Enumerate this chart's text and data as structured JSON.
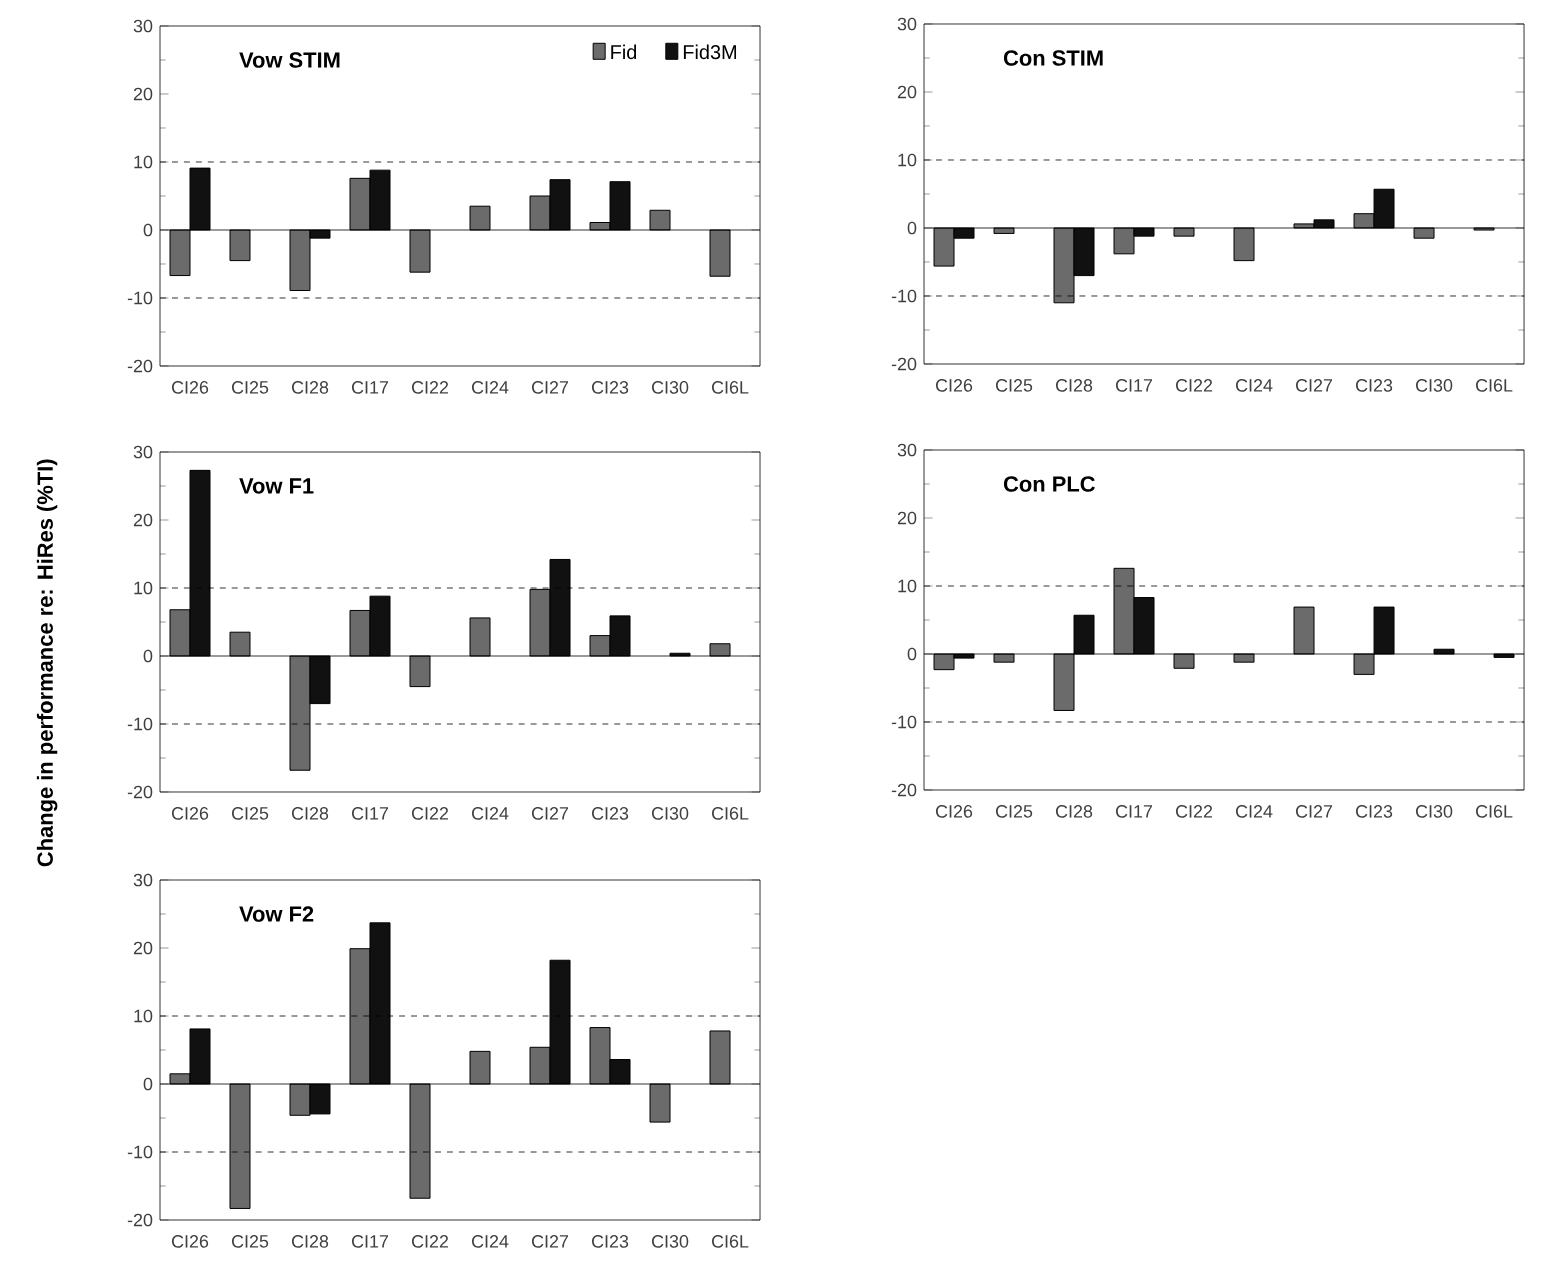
{
  "chart_data": [
    {
      "type": "bar",
      "title": "Vow STIM",
      "categories": [
        "CI26",
        "CI25",
        "CI28",
        "CI17",
        "CI22",
        "CI24",
        "CI27",
        "CI23",
        "CI30",
        "CI6L"
      ],
      "legend": "top right",
      "series": [
        {
          "name": "Fid",
          "color": "#6b6b6b",
          "values": [
            -6.7,
            -4.5,
            -8.9,
            7.6,
            -6.2,
            3.5,
            5.0,
            1.1,
            2.9,
            -6.8
          ]
        },
        {
          "name": "Fid3M",
          "color": "#111111",
          "values": [
            9.1,
            null,
            -1.2,
            8.8,
            null,
            null,
            7.4,
            7.1,
            null,
            null
          ]
        }
      ],
      "ylim": [
        -20,
        30
      ],
      "yticks": [
        -20,
        -10,
        0,
        10,
        20,
        30
      ],
      "ref_lines": [
        {
          "axis": "y",
          "value": 10,
          "line_style": "dashed"
        },
        {
          "axis": "y",
          "value": -10,
          "line_style": "dashed"
        }
      ]
    },
    {
      "type": "bar",
      "title": "Con STIM",
      "categories": [
        "CI26",
        "CI25",
        "CI28",
        "CI17",
        "CI22",
        "CI24",
        "CI27",
        "CI23",
        "CI30",
        "CI6L"
      ],
      "series": [
        {
          "color": "#6b6b6b",
          "values": [
            -5.6,
            -0.8,
            -11.0,
            -3.8,
            -1.2,
            -4.8,
            0.6,
            2.1,
            -1.5,
            -0.3
          ]
        },
        {
          "color": "#111111",
          "values": [
            -1.5,
            null,
            -7.0,
            -1.2,
            null,
            null,
            1.2,
            5.7,
            null,
            null
          ]
        }
      ],
      "ylim": [
        -20,
        30
      ],
      "yticks": [
        -20,
        -10,
        0,
        10,
        20,
        30
      ],
      "ref_lines": [
        {
          "axis": "y",
          "value": 10,
          "line_style": "dashed"
        },
        {
          "axis": "y",
          "value": -10,
          "line_style": "dashed"
        }
      ]
    },
    {
      "type": "bar",
      "title": "Vow F1",
      "ylabel": "Change in performance re: HiRes (%TI)",
      "categories": [
        "CI26",
        "CI25",
        "CI28",
        "CI17",
        "CI22",
        "CI24",
        "CI27",
        "CI23",
        "CI30",
        "CI6L"
      ],
      "series": [
        {
          "color": "#6b6b6b",
          "values": [
            6.8,
            3.5,
            -16.8,
            6.7,
            -4.5,
            5.6,
            9.8,
            3.0,
            null,
            1.8
          ]
        },
        {
          "color": "#111111",
          "values": [
            27.3,
            null,
            -7.0,
            8.8,
            null,
            null,
            14.2,
            5.9,
            0.4,
            null
          ]
        }
      ],
      "ylim": [
        -20,
        30
      ],
      "yticks": [
        -20,
        -10,
        0,
        10,
        20,
        30
      ],
      "ref_lines": [
        {
          "axis": "y",
          "value": 10,
          "line_style": "dashed"
        },
        {
          "axis": "y",
          "value": -10,
          "line_style": "dashed"
        }
      ]
    },
    {
      "type": "bar",
      "title": "Con PLC",
      "categories": [
        "CI26",
        "CI25",
        "CI28",
        "CI17",
        "CI22",
        "CI24",
        "CI27",
        "CI23",
        "CI30",
        "CI6L"
      ],
      "series": [
        {
          "color": "#6b6b6b",
          "values": [
            -2.3,
            -1.2,
            -8.3,
            12.6,
            -2.1,
            -1.2,
            6.9,
            -3.0,
            null,
            null
          ]
        },
        {
          "color": "#111111",
          "values": [
            -0.6,
            null,
            5.7,
            8.3,
            null,
            null,
            null,
            6.9,
            0.7,
            -0.5
          ]
        }
      ],
      "ylim": [
        -20,
        30
      ],
      "yticks": [
        -20,
        -10,
        0,
        10,
        20,
        30
      ],
      "ref_lines": [
        {
          "axis": "y",
          "value": 10,
          "line_style": "dashed"
        },
        {
          "axis": "y",
          "value": -10,
          "line_style": "dashed"
        }
      ]
    },
    {
      "type": "bar",
      "title": "Vow F2",
      "categories": [
        "CI26",
        "CI25",
        "CI28",
        "CI17",
        "CI22",
        "CI24",
        "CI27",
        "CI23",
        "CI30",
        "CI6L"
      ],
      "series": [
        {
          "color": "#6b6b6b",
          "values": [
            1.5,
            -18.3,
            -4.6,
            19.9,
            -16.8,
            4.8,
            5.4,
            8.3,
            -5.6,
            7.8
          ]
        },
        {
          "color": "#111111",
          "values": [
            8.1,
            null,
            -4.4,
            23.7,
            null,
            null,
            18.2,
            3.6,
            null,
            null
          ]
        }
      ],
      "ylim": [
        -20,
        30
      ],
      "yticks": [
        -20,
        -10,
        0,
        10,
        20,
        30
      ],
      "ref_lines": [
        {
          "axis": "y",
          "value": 10,
          "line_style": "dashed"
        },
        {
          "axis": "y",
          "value": -10,
          "line_style": "dashed"
        }
      ]
    }
  ]
}
